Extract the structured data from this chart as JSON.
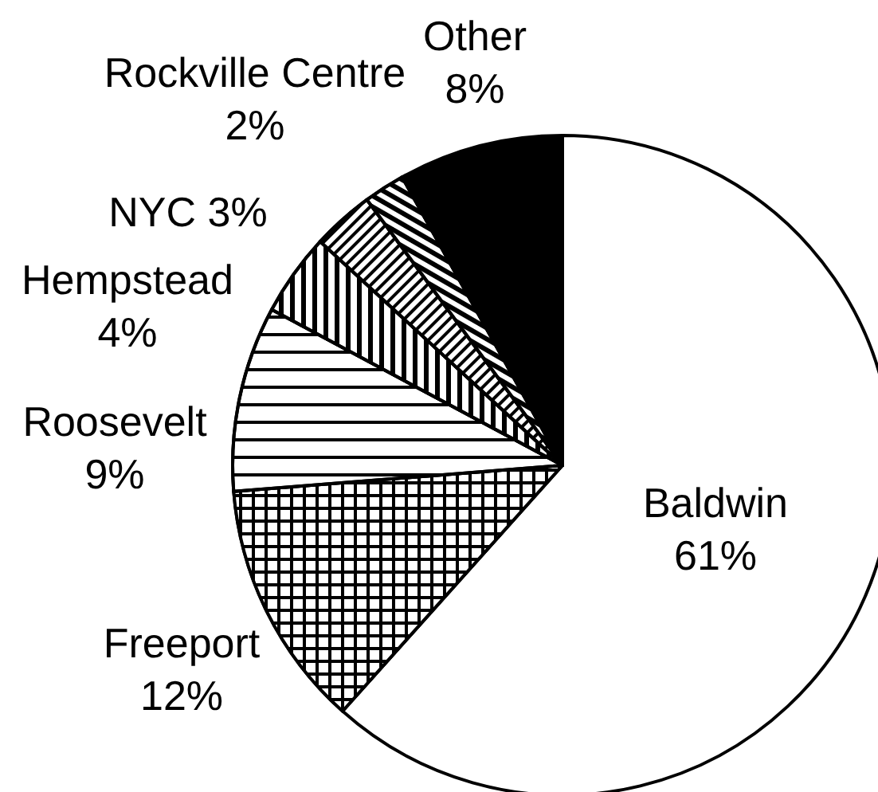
{
  "chart_data": {
    "type": "pie",
    "categories": [
      "Baldwin",
      "Freeport",
      "Roosevelt",
      "Hempstead",
      "NYC",
      "Rockville Centre",
      "Other"
    ],
    "values": [
      61,
      12,
      9,
      4,
      3,
      2,
      8
    ],
    "value_labels": [
      "61%",
      "12%",
      "9%",
      "4%",
      "3%",
      "2%",
      "8%"
    ],
    "colors": [
      "#ffffff",
      "#000000",
      "#000000",
      "#000000",
      "#000000",
      "#000000",
      "#000000"
    ]
  }
}
